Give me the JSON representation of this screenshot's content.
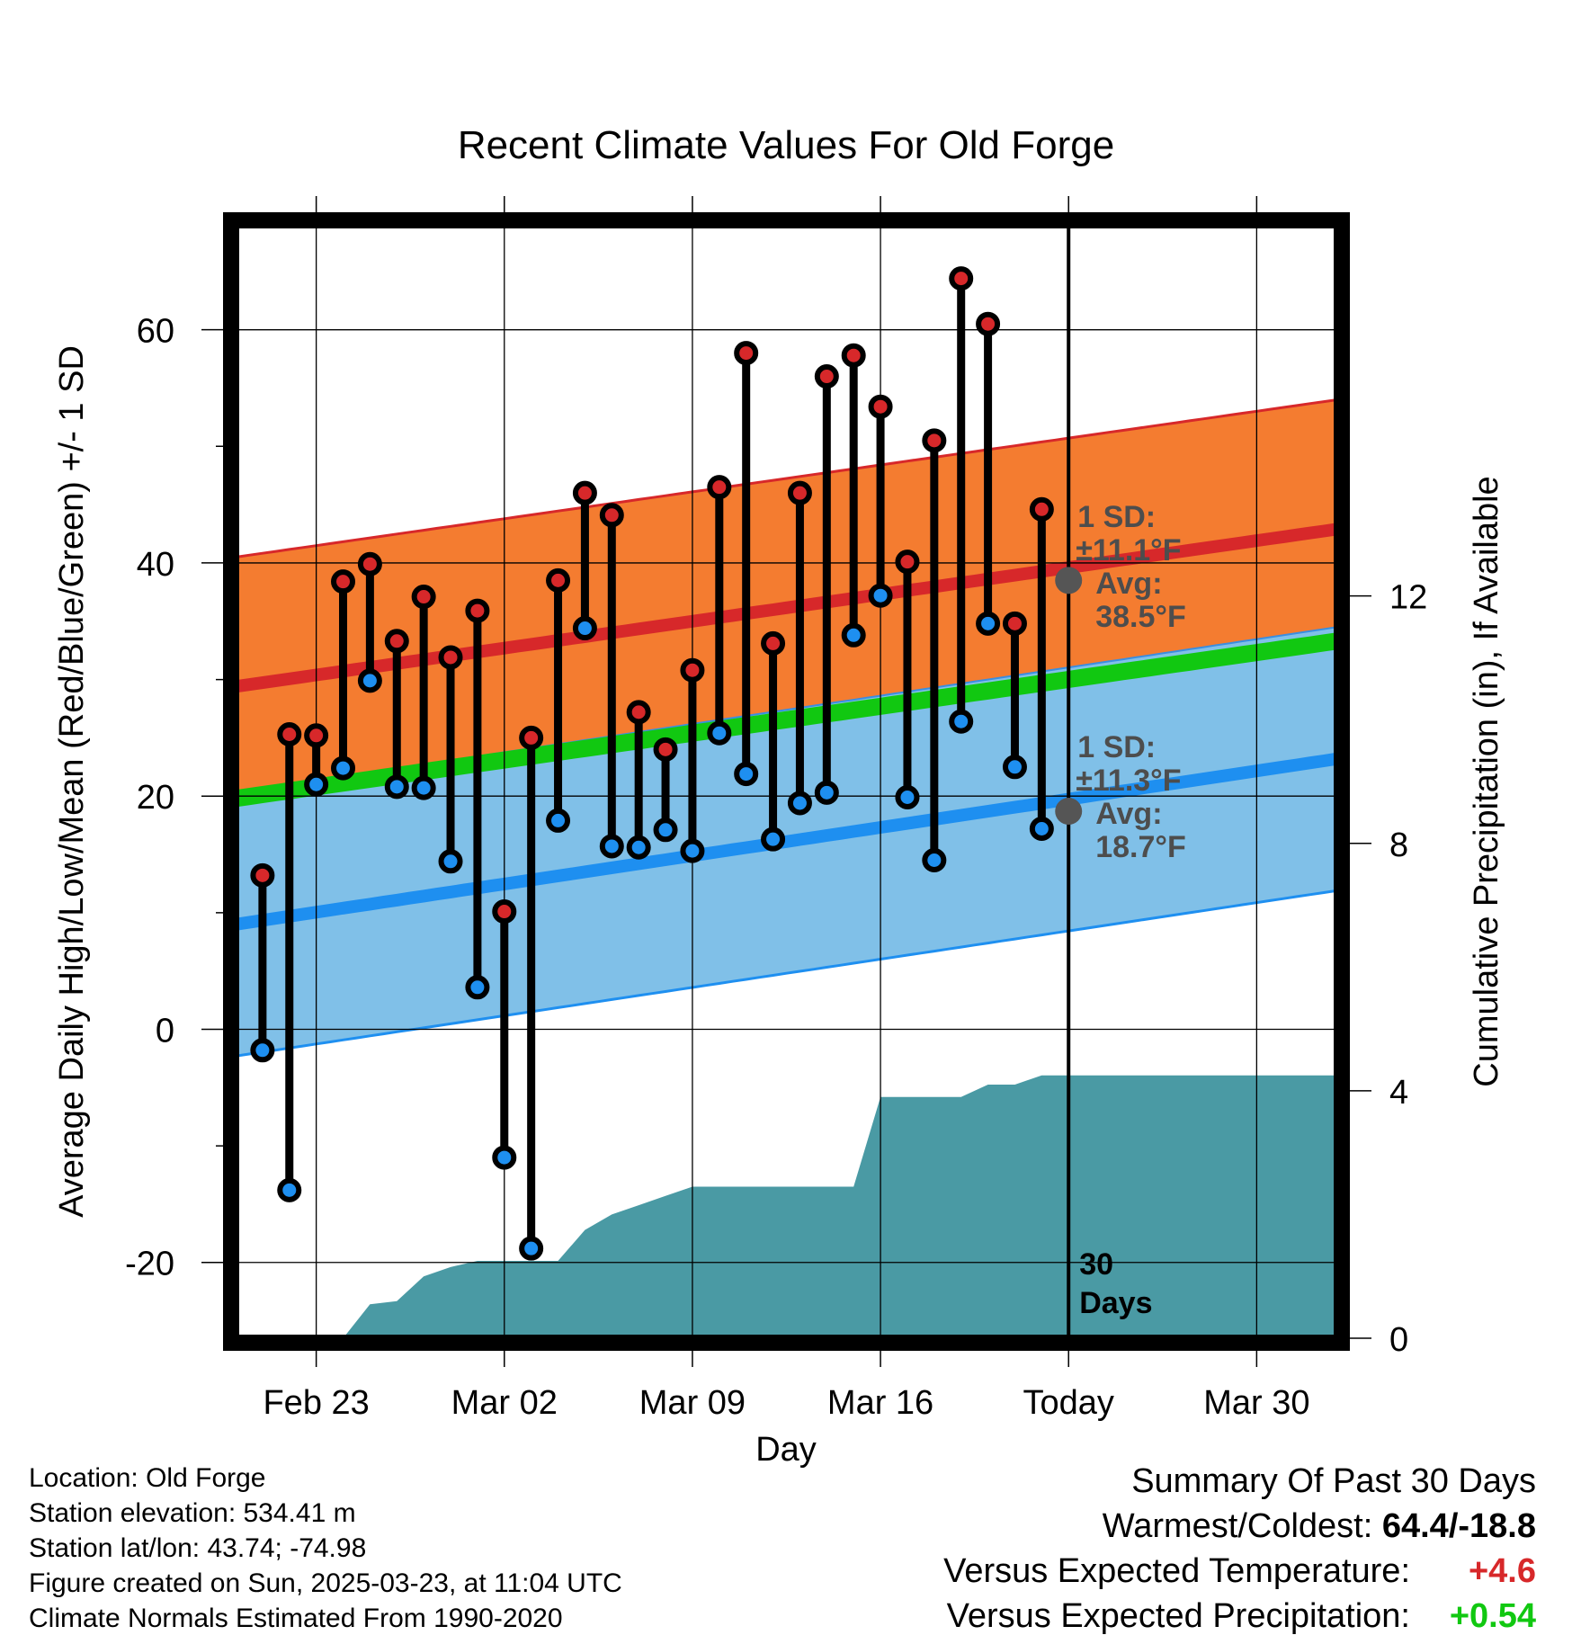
{
  "chart_data": {
    "type": "line",
    "title": "Recent Climate Values For Old Forge",
    "xlabel": "Day",
    "ylabel_left": "Average Daily High/Low/Mean (Red/Blue/Green) +/- 1 SD",
    "ylabel_right": "Cumulative Precipitation (in), If Available",
    "x_ticks": [
      "Feb 23",
      "Mar 02",
      "Mar 09",
      "Mar 16",
      "Today",
      "Mar 30"
    ],
    "y_ticks_left": [
      "-20",
      "0",
      "20",
      "40",
      "60"
    ],
    "y_ticks_right": [
      "0",
      "4",
      "8",
      "12"
    ],
    "ylim_left": [
      -26.5,
      69
    ],
    "ylim_right": [
      0,
      18
    ],
    "xlim_days_from_today": [
      -31,
      10
    ],
    "today_line_label": [
      "30",
      "Days"
    ],
    "grid": true,
    "colors": {
      "high_band": "#f47c30",
      "high_mean": "#d7282a",
      "low_band": "#80c0e8",
      "low_mean": "#1e8ff0",
      "mean_band_green": "#11c811",
      "overlap_dark": "#941414",
      "precip": "#4a9aa4",
      "high_marker": "#d7282a",
      "low_marker": "#1e8ff0",
      "avg_marker": "#555555"
    },
    "normals": {
      "days": [
        -31,
        10
      ],
      "avg_high": [
        29.4,
        42.9
      ],
      "avg_high_sd": 11.1,
      "avg_low": [
        9.0,
        23.2
      ],
      "avg_low_sd": 11.3,
      "avg_mean": [
        19.8,
        33.3
      ]
    },
    "sd_labels": {
      "high": [
        "1 SD:",
        "±11.1°F",
        "Avg:",
        "38.5°F"
      ],
      "low": [
        "1 SD:",
        "±11.3°F",
        "Avg:",
        "18.7°F"
      ]
    },
    "avg_markers": {
      "high": 38.5,
      "low": 18.7
    },
    "series": [
      {
        "name": "High",
        "days": [
          -30,
          -29,
          -28,
          -27,
          -26,
          -25,
          -24,
          -23,
          -22,
          -21,
          -20,
          -19,
          -18,
          -17,
          -16,
          -15,
          -14,
          -13,
          -12,
          -11,
          -10,
          -9,
          -8,
          -7,
          -6,
          -5,
          -4,
          -3,
          -2,
          -1
        ],
        "values": [
          13.2,
          25.3,
          25.2,
          38.4,
          39.9,
          33.3,
          37.1,
          31.9,
          35.9,
          10.1,
          25.0,
          38.5,
          46.0,
          44.1,
          27.2,
          24.0,
          30.8,
          46.5,
          58.0,
          33.1,
          46.0,
          56.0,
          57.8,
          53.4,
          40.1,
          50.5,
          64.4,
          60.5,
          34.8,
          44.6
        ]
      },
      {
        "name": "Low",
        "days": [
          -30,
          -29,
          -28,
          -27,
          -26,
          -25,
          -24,
          -23,
          -22,
          -21,
          -20,
          -19,
          -18,
          -17,
          -16,
          -15,
          -14,
          -13,
          -12,
          -11,
          -10,
          -9,
          -8,
          -7,
          -6,
          -5,
          -4,
          -3,
          -2,
          -1
        ],
        "values": [
          -1.8,
          -13.8,
          21.0,
          22.4,
          29.9,
          20.8,
          20.7,
          14.4,
          3.6,
          -11.0,
          -18.8,
          17.9,
          34.4,
          15.7,
          15.6,
          17.1,
          15.3,
          25.4,
          21.9,
          16.3,
          19.4,
          20.3,
          33.8,
          37.2,
          19.9,
          14.5,
          26.4,
          34.8,
          22.5,
          17.2
        ]
      }
    ],
    "precip": {
      "days": [
        -29.5,
        -27,
        -26,
        -25,
        -24,
        -23,
        -22,
        -21,
        -20,
        -19,
        -18,
        -17,
        -16,
        -15,
        -14,
        -13,
        -12,
        -11,
        -10,
        -9,
        -8,
        -7,
        -6,
        -5,
        -4,
        -3,
        -2,
        -1,
        0,
        10
      ],
      "cumulative_in": [
        0.0,
        0.0,
        0.55,
        0.6,
        1.0,
        1.15,
        1.25,
        1.25,
        1.25,
        1.25,
        1.75,
        2.0,
        2.15,
        2.3,
        2.45,
        2.45,
        2.45,
        2.45,
        2.45,
        2.45,
        2.45,
        3.9,
        3.9,
        3.9,
        3.9,
        4.1,
        4.1,
        4.25,
        4.25,
        4.25
      ]
    }
  },
  "info": {
    "location": "Location: Old Forge",
    "elevation": "Station elevation: 534.41 m",
    "latlon": "Station lat/lon: 43.74; -74.98",
    "created": "Figure created on Sun, 2025-03-23, at 11:04 UTC",
    "normals": "Climate Normals Estimated From 1990-2020"
  },
  "summary": {
    "title": "Summary Of Past 30 Days",
    "warm_cold_label": "Warmest/Coldest: ",
    "warm_cold_value": "64.4/-18.8",
    "temp_label": "Versus Expected Temperature:",
    "temp_value": "+4.6",
    "temp_color": "#d7282a",
    "precip_label": "Versus Expected Precipitation:",
    "precip_value": "+0.54",
    "precip_color": "#11c811"
  }
}
